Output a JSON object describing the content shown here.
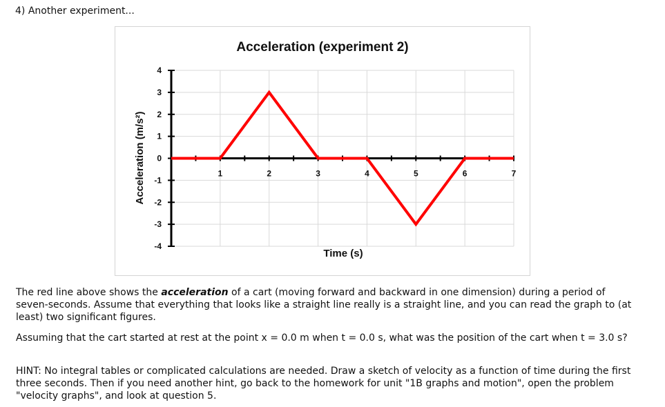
{
  "heading": "4) Another experiment...",
  "paragraphs": {
    "p1_before": "The red line above shows the ",
    "p1_emph": "acceleration",
    "p1_after": " of a cart (moving forward and backward in one dimension) during a period of seven-seconds. Assume that everything that looks like a straight line really is a straight line, and you can read the graph to (at least) two significant figures.",
    "p2": "Assuming that the cart started at rest at the point x = 0.0 m when t = 0.0 s, what was the position of the cart when t = 3.0 s?",
    "p3": "HINT: No integral tables or complicated calculations are needed.  Draw a sketch of velocity as a function of time during the first three seconds. Then if you need another hint, go back to the homework for unit \"1B graphs and motion\", open the problem \"velocity graphs\", and look at question 5."
  },
  "chart_data": {
    "type": "line",
    "title": "Acceleration (experiment 2)",
    "xlabel": "Time (s)",
    "ylabel": "Acceleration (m/s²)",
    "xlim": [
      0,
      7
    ],
    "ylim": [
      -4,
      4
    ],
    "x_ticks": [
      "1",
      "2",
      "3",
      "4",
      "5",
      "6",
      "7"
    ],
    "y_ticks": [
      "4",
      "3",
      "2",
      "1",
      "0",
      "-1",
      "-2",
      "-3",
      "-4"
    ],
    "grid": true,
    "line_color": "#ff0000",
    "series": [
      {
        "x": [
          0,
          1,
          2,
          3,
          4,
          5,
          6,
          7
        ],
        "y": [
          0,
          0,
          3,
          0,
          0,
          -3,
          0,
          0
        ]
      }
    ]
  }
}
